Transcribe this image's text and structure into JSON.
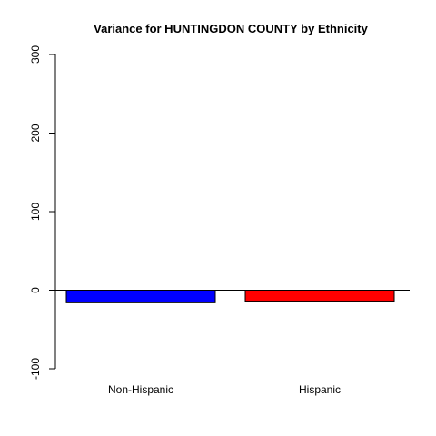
{
  "chart_data": {
    "type": "bar",
    "title": "Variance for HUNTINGDON COUNTY by Ethnicity",
    "xlabel": "",
    "ylabel": "",
    "categories": [
      "Non-Hispanic",
      "Hispanic"
    ],
    "values": [
      -16,
      -14
    ],
    "colors": [
      "#0000ff",
      "#ff0000"
    ],
    "ylim": [
      -100,
      300
    ],
    "yticks": [
      -100,
      0,
      100,
      200,
      300
    ],
    "baseline": 0,
    "grid": false,
    "legend": "none"
  }
}
